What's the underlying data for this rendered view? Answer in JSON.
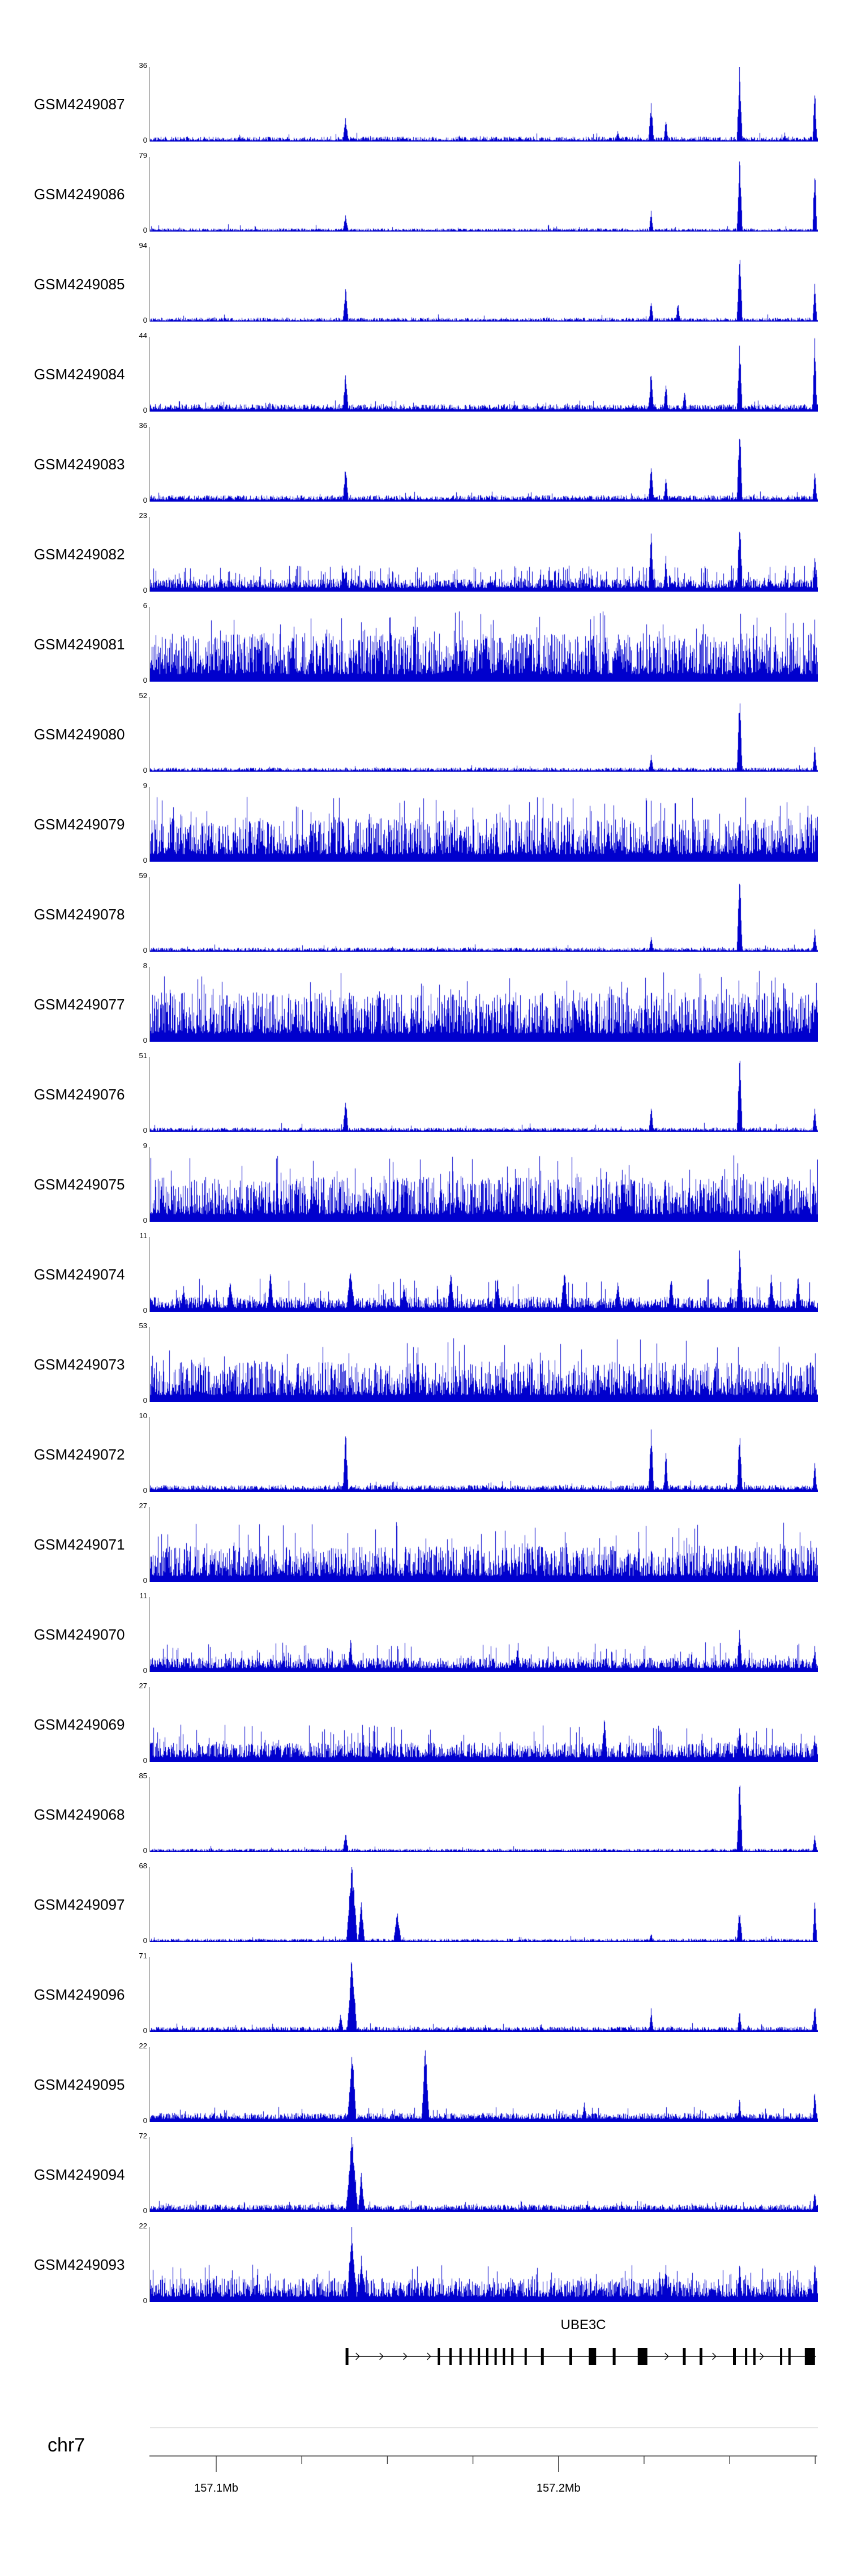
{
  "colors": {
    "signal": "#0000CD",
    "gene": "#000000",
    "axis": "#404040",
    "text": "#000000"
  },
  "chart_data": {
    "type": "area",
    "title": "",
    "x_axis": {
      "chromosome": "chr7",
      "region_mb": [
        157.08,
        157.276
      ],
      "ticks": [
        {
          "pos": 0.1,
          "label": "157.1Mb",
          "major": true
        },
        {
          "pos": 0.2281,
          "label": "",
          "major": false
        },
        {
          "pos": 0.3563,
          "label": "",
          "major": false
        },
        {
          "pos": 0.4844,
          "label": "",
          "major": false
        },
        {
          "pos": 0.6125,
          "label": "157.2Mb",
          "major": true
        },
        {
          "pos": 0.7406,
          "label": "",
          "major": false
        },
        {
          "pos": 0.8688,
          "label": "",
          "major": false
        },
        {
          "pos": 0.9969,
          "label": "",
          "major": false
        }
      ]
    },
    "gene": {
      "name": "UBE3C",
      "strand": "+",
      "start": 0.293,
      "end": 0.997,
      "exons": [
        [
          0.295,
          5
        ],
        [
          0.4325,
          4
        ],
        [
          0.45,
          4
        ],
        [
          0.465,
          4
        ],
        [
          0.48,
          4
        ],
        [
          0.4925,
          4
        ],
        [
          0.505,
          4
        ],
        [
          0.5175,
          4
        ],
        [
          0.53,
          4
        ],
        [
          0.5425,
          4
        ],
        [
          0.5625,
          4
        ],
        [
          0.5875,
          5
        ],
        [
          0.63,
          5
        ],
        [
          0.6625,
          13
        ],
        [
          0.695,
          5
        ],
        [
          0.7375,
          17
        ],
        [
          0.8,
          5
        ],
        [
          0.825,
          5
        ],
        [
          0.875,
          5
        ],
        [
          0.8925,
          4
        ],
        [
          0.905,
          4
        ],
        [
          0.945,
          4
        ],
        [
          0.9575,
          4
        ],
        [
          0.988,
          18
        ]
      ]
    },
    "tracks": [
      {
        "label": "GSM4249087",
        "ymax": "36",
        "ymin": "0",
        "seed": 1,
        "profile": {
          "base": 0.015,
          "vr": 0.05,
          "spike_p": 0.02,
          "spike_h": 0.12
        },
        "peaks": [
          [
            0.2925,
            0.32,
            5
          ],
          [
            0.7,
            0.15,
            4
          ],
          [
            0.75,
            0.5,
            5
          ],
          [
            0.772,
            0.3,
            4
          ],
          [
            0.8825,
            1.0,
            5
          ],
          [
            0.95,
            0.12,
            3
          ],
          [
            0.995,
            0.7,
            4
          ]
        ]
      },
      {
        "label": "GSM4249086",
        "ymax": "79",
        "ymin": "0",
        "seed": 2,
        "profile": {
          "base": 0.012,
          "vr": 0.03,
          "spike_p": 0.015,
          "spike_h": 0.1
        },
        "peaks": [
          [
            0.2925,
            0.22,
            5
          ],
          [
            0.75,
            0.28,
            4
          ],
          [
            0.8825,
            1.0,
            5
          ],
          [
            0.995,
            0.88,
            4
          ]
        ]
      },
      {
        "label": "GSM4249085",
        "ymax": "94",
        "ymin": "0",
        "seed": 3,
        "profile": {
          "base": 0.012,
          "vr": 0.04,
          "spike_p": 0.015,
          "spike_h": 0.1
        },
        "peaks": [
          [
            0.2925,
            0.45,
            5
          ],
          [
            0.75,
            0.3,
            4
          ],
          [
            0.79,
            0.25,
            4
          ],
          [
            0.8825,
            0.95,
            5
          ],
          [
            0.995,
            0.55,
            4
          ]
        ]
      },
      {
        "label": "GSM4249084",
        "ymax": "44",
        "ymin": "0",
        "seed": 4,
        "profile": {
          "base": 0.03,
          "vr": 0.07,
          "spike_p": 0.04,
          "spike_h": 0.15
        },
        "peaks": [
          [
            0.2925,
            0.55,
            5
          ],
          [
            0.75,
            0.55,
            5
          ],
          [
            0.772,
            0.42,
            4
          ],
          [
            0.8,
            0.3,
            4
          ],
          [
            0.8825,
            0.88,
            5
          ],
          [
            0.995,
            1.0,
            4
          ]
        ]
      },
      {
        "label": "GSM4249083",
        "ymax": "36",
        "ymin": "0",
        "seed": 5,
        "profile": {
          "base": 0.025,
          "vr": 0.06,
          "spike_p": 0.03,
          "spike_h": 0.14
        },
        "peaks": [
          [
            0.2925,
            0.5,
            5
          ],
          [
            0.75,
            0.48,
            5
          ],
          [
            0.772,
            0.33,
            4
          ],
          [
            0.8825,
            1.0,
            5
          ],
          [
            0.995,
            0.42,
            4
          ]
        ]
      },
      {
        "label": "GSM4249082",
        "ymax": "23",
        "ymin": "0",
        "seed": 6,
        "profile": {
          "base": 0.05,
          "vr": 0.12,
          "spike_p": 0.15,
          "spike_h": 0.35
        },
        "peaks": [
          [
            0.2925,
            0.3,
            5
          ],
          [
            0.75,
            0.78,
            5
          ],
          [
            0.772,
            0.45,
            4
          ],
          [
            0.8825,
            1.0,
            5
          ],
          [
            0.995,
            0.48,
            4
          ]
        ]
      },
      {
        "label": "GSM4249081",
        "ymax": "6",
        "ymin": "0",
        "seed": 7,
        "profile": {
          "base": 0.1,
          "vr": 0.55,
          "spike_p": 0.08,
          "spike_h": 0.95
        },
        "peaks": []
      },
      {
        "label": "GSM4249080",
        "ymax": "52",
        "ymin": "0",
        "seed": 8,
        "profile": {
          "base": 0.015,
          "vr": 0.04,
          "spike_p": 0.02,
          "spike_h": 0.1
        },
        "peaks": [
          [
            0.75,
            0.25,
            4
          ],
          [
            0.8825,
            1.0,
            5
          ],
          [
            0.995,
            0.32,
            4
          ]
        ]
      },
      {
        "label": "GSM4249079",
        "ymax": "9",
        "ymin": "0",
        "seed": 9,
        "profile": {
          "base": 0.1,
          "vr": 0.5,
          "spike_p": 0.07,
          "spike_h": 0.9
        },
        "peaks": []
      },
      {
        "label": "GSM4249078",
        "ymax": "59",
        "ymin": "0",
        "seed": 10,
        "profile": {
          "base": 0.015,
          "vr": 0.04,
          "spike_p": 0.02,
          "spike_h": 0.1
        },
        "peaks": [
          [
            0.75,
            0.22,
            4
          ],
          [
            0.8825,
            1.0,
            5
          ],
          [
            0.995,
            0.28,
            4
          ]
        ]
      },
      {
        "label": "GSM4249077",
        "ymax": "8",
        "ymin": "0",
        "seed": 11,
        "profile": {
          "base": 0.11,
          "vr": 0.55,
          "spike_p": 0.08,
          "spike_h": 0.95
        },
        "peaks": []
      },
      {
        "label": "GSM4249076",
        "ymax": "51",
        "ymin": "0",
        "seed": 12,
        "profile": {
          "base": 0.015,
          "vr": 0.04,
          "spike_p": 0.02,
          "spike_h": 0.12
        },
        "peaks": [
          [
            0.2925,
            0.45,
            5
          ],
          [
            0.75,
            0.35,
            4
          ],
          [
            0.8825,
            1.0,
            5
          ],
          [
            0.995,
            0.33,
            4
          ]
        ]
      },
      {
        "label": "GSM4249075",
        "ymax": "9",
        "ymin": "0",
        "seed": 13,
        "profile": {
          "base": 0.1,
          "vr": 0.5,
          "spike_p": 0.07,
          "spike_h": 0.9
        },
        "peaks": []
      },
      {
        "label": "GSM4249074",
        "ymax": "11",
        "ymin": "0",
        "seed": 14,
        "profile": {
          "base": 0.05,
          "vr": 0.15,
          "spike_p": 0.05,
          "spike_h": 0.45
        },
        "peaks": [
          [
            0.05,
            0.35,
            6
          ],
          [
            0.12,
            0.4,
            7
          ],
          [
            0.18,
            0.5,
            6
          ],
          [
            0.3,
            0.55,
            8
          ],
          [
            0.38,
            0.4,
            6
          ],
          [
            0.45,
            0.5,
            7
          ],
          [
            0.52,
            0.45,
            6
          ],
          [
            0.62,
            0.55,
            7
          ],
          [
            0.7,
            0.4,
            6
          ],
          [
            0.78,
            0.45,
            6
          ],
          [
            0.8825,
            0.8,
            6
          ],
          [
            0.93,
            0.5,
            5
          ],
          [
            0.97,
            0.55,
            5
          ]
        ]
      },
      {
        "label": "GSM4249073",
        "ymax": "53",
        "ymin": "0",
        "seed": 15,
        "profile": {
          "base": 0.09,
          "vr": 0.45,
          "spike_p": 0.07,
          "spike_h": 0.85
        },
        "peaks": []
      },
      {
        "label": "GSM4249072",
        "ymax": "10",
        "ymin": "0",
        "seed": 16,
        "profile": {
          "base": 0.03,
          "vr": 0.06,
          "spike_p": 0.03,
          "spike_h": 0.15
        },
        "peaks": [
          [
            0.2925,
            0.82,
            5
          ],
          [
            0.75,
            0.88,
            5
          ],
          [
            0.772,
            0.55,
            4
          ],
          [
            0.8825,
            0.78,
            5
          ],
          [
            0.995,
            0.4,
            4
          ]
        ]
      },
      {
        "label": "GSM4249071",
        "ymax": "27",
        "ymin": "0",
        "seed": 17,
        "profile": {
          "base": 0.08,
          "vr": 0.4,
          "spike_p": 0.07,
          "spike_h": 0.8
        },
        "peaks": []
      },
      {
        "label": "GSM4249070",
        "ymax": "11",
        "ymin": "0",
        "seed": 18,
        "profile": {
          "base": 0.05,
          "vr": 0.14,
          "spike_p": 0.09,
          "spike_h": 0.4
        },
        "peaks": [
          [
            0.3,
            0.45,
            5
          ],
          [
            0.55,
            0.35,
            5
          ],
          [
            0.8825,
            0.6,
            5
          ],
          [
            0.995,
            0.35,
            4
          ]
        ]
      },
      {
        "label": "GSM4249069",
        "ymax": "27",
        "ymin": "0",
        "seed": 19,
        "profile": {
          "base": 0.06,
          "vr": 0.2,
          "spike_p": 0.09,
          "spike_h": 0.5
        },
        "peaks": [
          [
            0.68,
            0.55,
            6
          ],
          [
            0.8825,
            0.5,
            5
          ],
          [
            0.995,
            0.4,
            4
          ]
        ]
      },
      {
        "label": "GSM4249068",
        "ymax": "85",
        "ymin": "0",
        "seed": 20,
        "profile": {
          "base": 0.012,
          "vr": 0.03,
          "spike_p": 0.015,
          "spike_h": 0.08
        },
        "peaks": [
          [
            0.2925,
            0.25,
            5
          ],
          [
            0.8825,
            1.0,
            5
          ],
          [
            0.995,
            0.22,
            4
          ]
        ]
      },
      {
        "label": "GSM4249097",
        "ymax": "68",
        "ymin": "0",
        "seed": 21,
        "profile": {
          "base": 0.012,
          "vr": 0.03,
          "spike_p": 0.015,
          "spike_h": 0.08
        },
        "peaks": [
          [
            0.302,
            1.0,
            10
          ],
          [
            0.316,
            0.55,
            6
          ],
          [
            0.37,
            0.4,
            7
          ],
          [
            0.75,
            0.12,
            4
          ],
          [
            0.8825,
            0.45,
            5
          ],
          [
            0.995,
            0.55,
            4
          ]
        ]
      },
      {
        "label": "GSM4249096",
        "ymax": "71",
        "ymin": "0",
        "seed": 22,
        "profile": {
          "base": 0.02,
          "vr": 0.05,
          "spike_p": 0.03,
          "spike_h": 0.12
        },
        "peaks": [
          [
            0.285,
            0.25,
            5
          ],
          [
            0.302,
            1.0,
            9
          ],
          [
            0.75,
            0.3,
            4
          ],
          [
            0.8825,
            0.28,
            4
          ],
          [
            0.995,
            0.38,
            4
          ]
        ]
      },
      {
        "label": "GSM4249095",
        "ymax": "22",
        "ymin": "0",
        "seed": 23,
        "profile": {
          "base": 0.04,
          "vr": 0.08,
          "spike_p": 0.05,
          "spike_h": 0.2
        },
        "peaks": [
          [
            0.302,
            0.95,
            8
          ],
          [
            0.412,
            1.0,
            7
          ],
          [
            0.65,
            0.25,
            5
          ],
          [
            0.8825,
            0.3,
            4
          ],
          [
            0.995,
            0.45,
            4
          ]
        ]
      },
      {
        "label": "GSM4249094",
        "ymax": "72",
        "ymin": "0",
        "seed": 24,
        "profile": {
          "base": 0.03,
          "vr": 0.07,
          "spike_p": 0.04,
          "spike_h": 0.15
        },
        "peaks": [
          [
            0.302,
            1.0,
            11
          ],
          [
            0.316,
            0.5,
            6
          ],
          [
            0.995,
            0.3,
            4
          ]
        ]
      },
      {
        "label": "GSM4249093",
        "ymax": "22",
        "ymin": "0",
        "seed": 25,
        "profile": {
          "base": 0.07,
          "vr": 0.25,
          "spike_p": 0.08,
          "spike_h": 0.5
        },
        "peaks": [
          [
            0.302,
            1.0,
            9
          ],
          [
            0.316,
            0.6,
            6
          ],
          [
            0.772,
            0.55,
            5
          ],
          [
            0.8825,
            0.5,
            5
          ],
          [
            0.995,
            0.55,
            4
          ]
        ]
      }
    ]
  }
}
